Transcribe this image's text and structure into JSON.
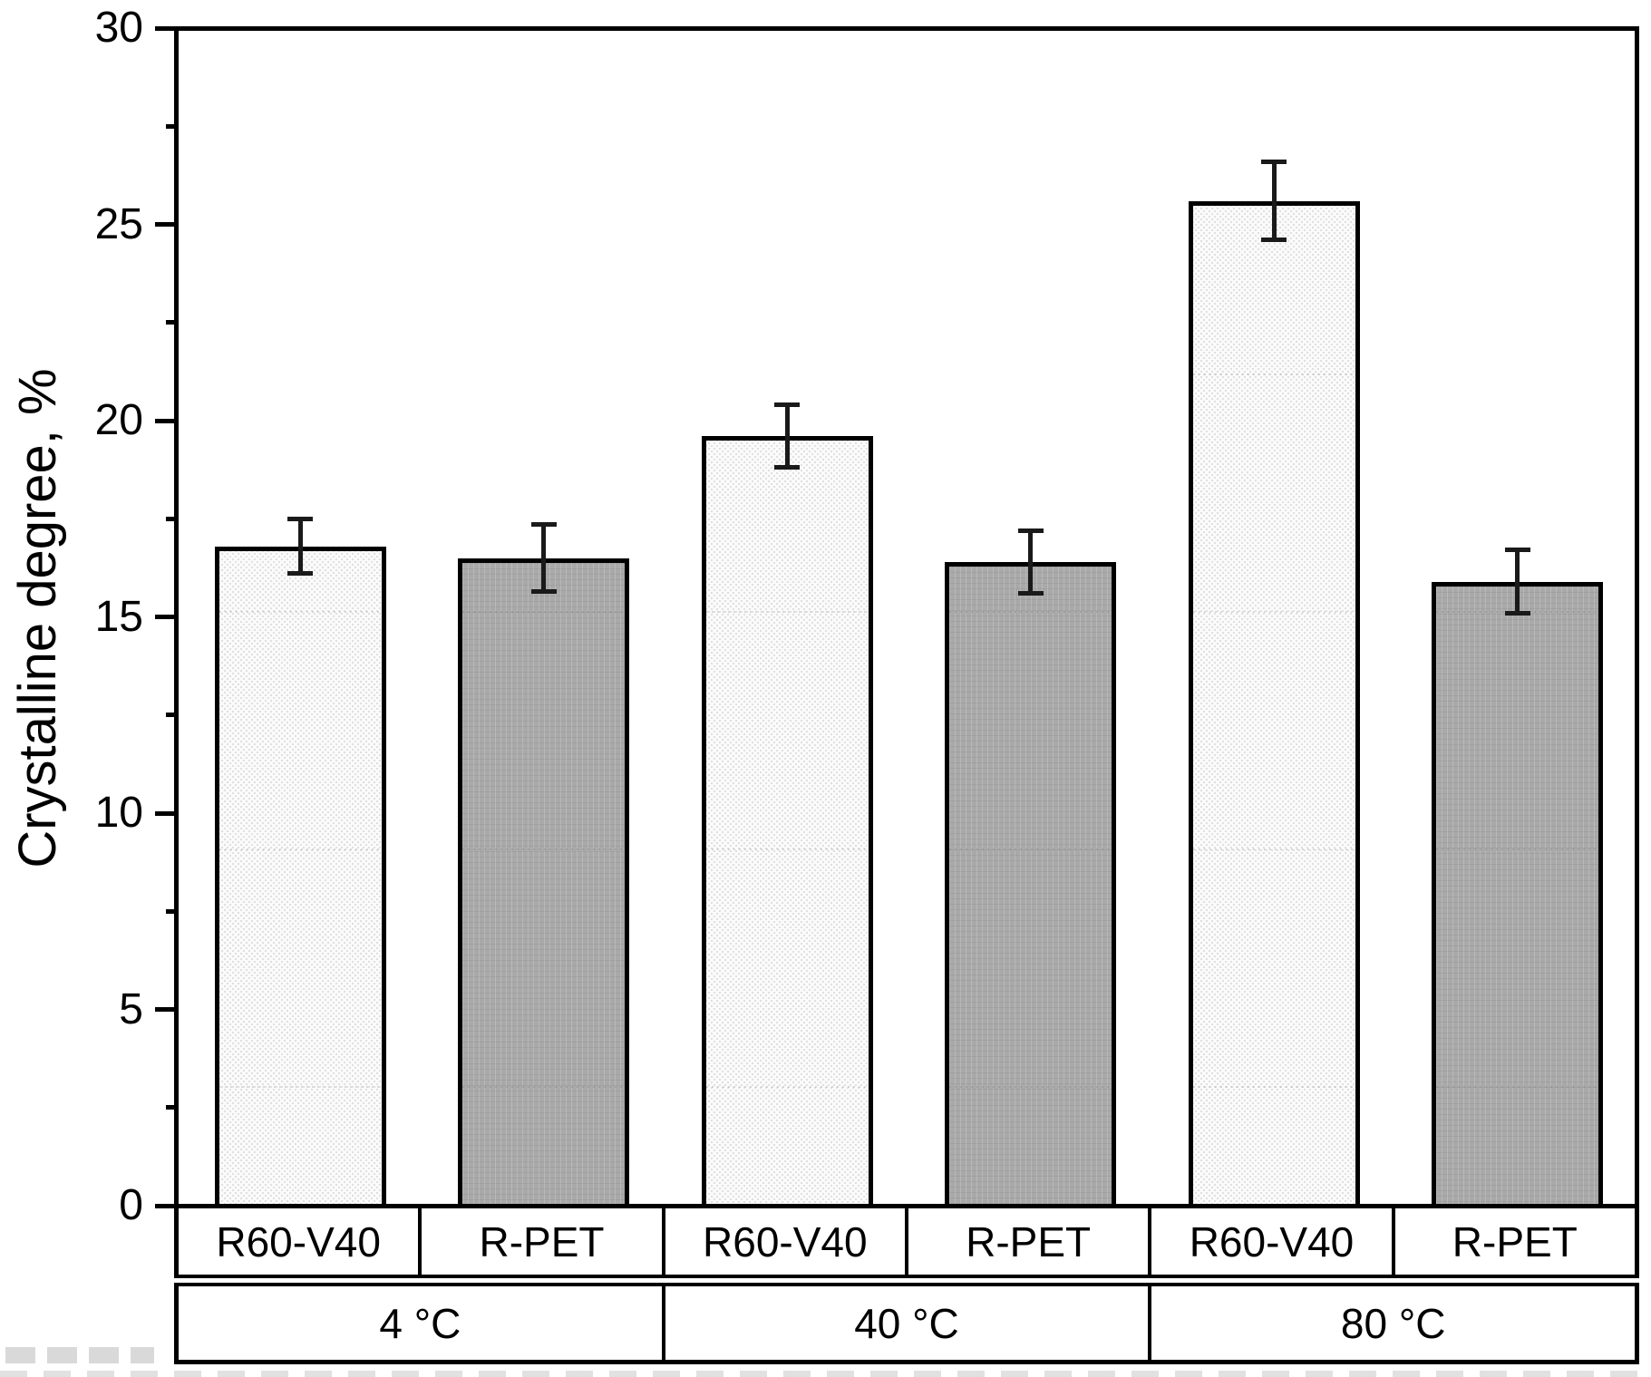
{
  "chart_data": {
    "type": "bar",
    "title": "",
    "ylabel": "Crystalline degree, %",
    "xlabel": "",
    "ylim": [
      0,
      30
    ],
    "y_major_ticks": [
      0,
      5,
      10,
      15,
      20,
      25,
      30
    ],
    "y_minor_tick_step": 2.5,
    "grid": false,
    "legend_position": "none",
    "groups": [
      "4 °C",
      "40 °C",
      "80 °C"
    ],
    "series_labels": [
      "R60-V40",
      "R-PET"
    ],
    "bars": [
      {
        "group": "4 °C",
        "series": "R60-V40",
        "value": 16.8,
        "error": 0.7
      },
      {
        "group": "4 °C",
        "series": "R-PET",
        "value": 16.5,
        "error": 0.85
      },
      {
        "group": "40 °C",
        "series": "R60-V40",
        "value": 19.6,
        "error": 0.8
      },
      {
        "group": "40 °C",
        "series": "R-PET",
        "value": 16.4,
        "error": 0.8
      },
      {
        "group": "80 °C",
        "series": "R60-V40",
        "value": 25.6,
        "error": 1.0
      },
      {
        "group": "80 °C",
        "series": "R-PET",
        "value": 15.9,
        "error": 0.8
      }
    ],
    "colors": {
      "axis": "#000000",
      "r60_v40_fill": "#fbfbfb",
      "r60_v40_dot": "#e0e0e0",
      "r_pet_fill": "#a9a9a9",
      "error_bar": "#1a1a1a"
    }
  }
}
